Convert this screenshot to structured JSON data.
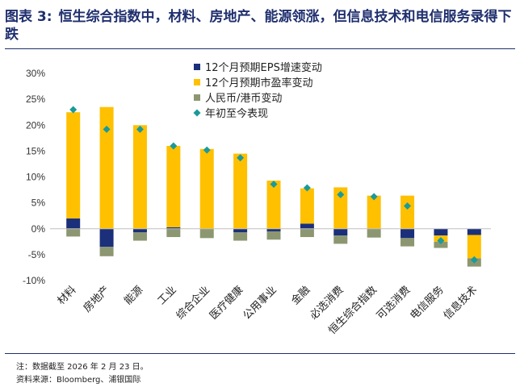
{
  "header": {
    "label": "图表 3:",
    "title": "恒生综合指数中，材料、房地产、能源领涨，但信息技术和电信服务录得下跌"
  },
  "footer": {
    "note": "注：数据截至 2026 年 2 月 23 日。",
    "source": "资料来源：Bloomberg、浦银国际"
  },
  "chart_data": {
    "type": "bar",
    "stacked": true,
    "categories": [
      "材料",
      "房地产",
      "能源",
      "工业",
      "综合企业",
      "医疗健康",
      "公用事业",
      "金融",
      "必选消费",
      "恒生综合指数",
      "可选消费",
      "电信服务",
      "信息技术"
    ],
    "series": [
      {
        "name": "12个月预期EPS增速变动",
        "kind": "bar",
        "color": "#1b2f7a",
        "values": [
          2.0,
          -3.5,
          -0.7,
          0.3,
          0.0,
          -0.7,
          -0.5,
          1.0,
          -1.3,
          0.0,
          -1.8,
          -1.3,
          -1.2
        ]
      },
      {
        "name": "12个月预期市盈率变动",
        "kind": "bar",
        "color": "#ffc000",
        "values": [
          20.5,
          23.5,
          20.0,
          15.7,
          15.4,
          14.5,
          9.3,
          6.8,
          8.0,
          6.4,
          6.4,
          -1.2,
          -4.5
        ]
      },
      {
        "name": "人民币/港币变动",
        "kind": "bar",
        "color": "#8c9771",
        "values": [
          -1.5,
          -1.8,
          -1.6,
          -1.6,
          -1.8,
          -1.6,
          -1.6,
          -1.6,
          -1.6,
          -1.7,
          -1.6,
          -1.2,
          -1.6
        ]
      },
      {
        "name": "年初至今表现",
        "kind": "marker",
        "color": "#1a9a9a",
        "values": [
          23.0,
          19.2,
          19.2,
          16.0,
          15.2,
          13.7,
          8.6,
          7.9,
          6.6,
          6.2,
          4.4,
          -2.3,
          -6.0
        ]
      }
    ],
    "yticks": [
      "30%",
      "25%",
      "20%",
      "15%",
      "10%",
      "5%",
      "0%",
      "-5%",
      "-10%"
    ],
    "ylim": [
      -10,
      30
    ],
    "xlabel": "",
    "ylabel": "",
    "legend": "top-center"
  }
}
